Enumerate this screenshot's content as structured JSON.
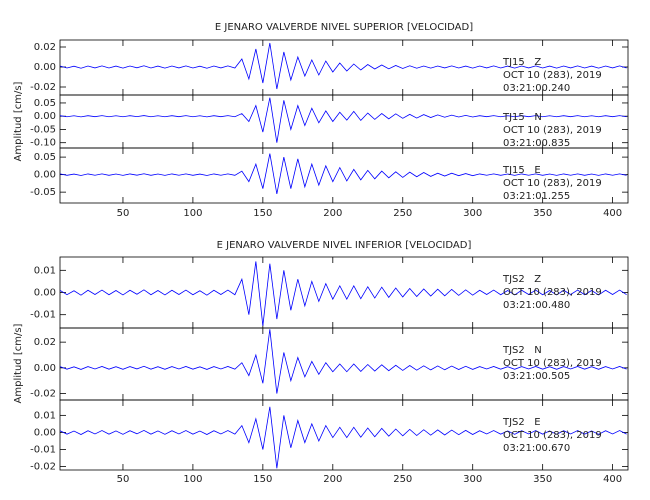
{
  "chart_data": [
    {
      "type": "line",
      "title": "E JENARO VALVERDE NIVEL SUPERIOR [VELOCIDAD]",
      "y_label": "Amplitud [cm/s]",
      "xlim": [
        5,
        411
      ],
      "xticks": [
        50,
        100,
        150,
        200,
        250,
        300,
        350,
        400
      ],
      "x": [
        5,
        10,
        15,
        20,
        25,
        30,
        35,
        40,
        45,
        50,
        55,
        60,
        65,
        70,
        75,
        80,
        85,
        90,
        95,
        100,
        105,
        110,
        115,
        120,
        125,
        130,
        135,
        140,
        145,
        150,
        155,
        160,
        165,
        170,
        175,
        180,
        185,
        190,
        195,
        200,
        205,
        210,
        215,
        220,
        225,
        230,
        235,
        240,
        245,
        250,
        255,
        260,
        265,
        270,
        275,
        280,
        285,
        290,
        295,
        300,
        305,
        310,
        315,
        320,
        325,
        330,
        335,
        340,
        345,
        350,
        355,
        360,
        365,
        370,
        375,
        380,
        385,
        390,
        395,
        400,
        405,
        410
      ],
      "series": [
        {
          "name": "TJ15   Z",
          "date": "OCT 10 (283), 2019",
          "time": "03:21:00.240",
          "color": "#0000ff",
          "ylim": [
            -0.028,
            0.027
          ],
          "yticks": [
            {
              "value": 0.02,
              "label": "0.02"
            },
            {
              "value": 0.0,
              "label": "0.00"
            },
            {
              "value": -0.02,
              "label": "-0.02"
            }
          ],
          "values": [
            0.001,
            -0.001,
            0.0008,
            -0.0012,
            0.001,
            -0.0009,
            0.0011,
            -0.001,
            0.0009,
            -0.0011,
            0.001,
            -0.0008,
            0.0012,
            -0.001,
            0.0009,
            -0.0011,
            0.001,
            -0.0009,
            0.0011,
            -0.001,
            0.0008,
            -0.0012,
            0.001,
            -0.0009,
            0.0011,
            -0.001,
            0.008,
            -0.012,
            0.018,
            -0.016,
            0.024,
            -0.022,
            0.015,
            -0.013,
            0.01,
            -0.009,
            0.007,
            -0.008,
            0.006,
            -0.005,
            0.004,
            -0.004,
            0.003,
            -0.003,
            0.0025,
            -0.002,
            0.002,
            -0.0018,
            0.0015,
            -0.0015,
            0.0012,
            -0.0012,
            0.001,
            -0.0011,
            0.001,
            -0.0009,
            0.0011,
            -0.001,
            0.0009,
            -0.0011,
            0.001,
            -0.0009,
            0.0011,
            -0.001,
            0.0009,
            -0.0011,
            0.001,
            -0.0009,
            0.0011,
            -0.001,
            0.0009,
            -0.0011,
            0.001,
            -0.0009,
            0.0011,
            -0.001,
            0.0009,
            -0.0011,
            0.001,
            -0.0009,
            0.0011,
            -0.001
          ]
        },
        {
          "name": "TJ15   N",
          "date": "OCT 10 (283), 2019",
          "time": "03:21:00.835",
          "color": "#0000ff",
          "ylim": [
            -0.12,
            0.08
          ],
          "yticks": [
            {
              "value": 0.05,
              "label": "0.05"
            },
            {
              "value": 0.0,
              "label": "0.00"
            },
            {
              "value": -0.05,
              "label": "-0.05"
            },
            {
              "value": -0.1,
              "label": "-0.10"
            }
          ],
          "values": [
            0.002,
            -0.002,
            0.0016,
            -0.0024,
            0.002,
            -0.0018,
            0.0022,
            -0.002,
            0.0018,
            -0.0022,
            0.002,
            -0.0016,
            0.0024,
            -0.002,
            0.0018,
            -0.0022,
            0.002,
            -0.0018,
            0.0022,
            -0.002,
            0.0016,
            -0.0024,
            0.002,
            -0.0018,
            0.0022,
            -0.002,
            0.01,
            -0.02,
            0.04,
            -0.06,
            0.07,
            -0.1,
            0.06,
            -0.05,
            0.04,
            -0.035,
            0.03,
            -0.025,
            0.02,
            -0.02,
            0.015,
            -0.015,
            0.018,
            -0.016,
            0.012,
            -0.012,
            0.01,
            -0.01,
            0.009,
            -0.008,
            0.007,
            -0.007,
            0.006,
            -0.005,
            0.005,
            -0.004,
            0.004,
            -0.003,
            0.003,
            -0.003,
            0.002,
            -0.0018,
            0.0022,
            -0.002,
            0.0018,
            -0.0022,
            0.002,
            -0.0018,
            0.0022,
            -0.002,
            0.0018,
            -0.0022,
            0.002,
            -0.0018,
            0.0022,
            -0.002,
            0.0018,
            -0.0022,
            0.002,
            -0.0018,
            0.0022,
            -0.002
          ]
        },
        {
          "name": "TJ15   E",
          "date": "OCT 10 (283), 2019",
          "time": "03:21:01.255",
          "color": "#0000ff",
          "ylim": [
            -0.081,
            0.076
          ],
          "yticks": [
            {
              "value": 0.05,
              "label": "0.05"
            },
            {
              "value": 0.0,
              "label": "0.00"
            },
            {
              "value": -0.05,
              "label": "-0.05"
            }
          ],
          "values": [
            0.002,
            -0.002,
            0.0016,
            -0.0024,
            0.002,
            -0.0018,
            0.0022,
            -0.002,
            0.0018,
            -0.0022,
            0.002,
            -0.0016,
            0.0024,
            -0.002,
            0.0018,
            -0.0022,
            0.002,
            -0.0018,
            0.0022,
            -0.002,
            0.0016,
            -0.0024,
            0.002,
            -0.0018,
            0.0022,
            -0.002,
            0.01,
            -0.02,
            0.03,
            -0.04,
            0.06,
            -0.055,
            0.05,
            -0.04,
            0.045,
            -0.035,
            0.03,
            -0.03,
            0.025,
            -0.02,
            0.02,
            -0.018,
            0.015,
            -0.015,
            0.012,
            -0.012,
            0.01,
            -0.009,
            0.008,
            -0.008,
            0.007,
            -0.006,
            0.006,
            -0.005,
            0.004,
            -0.004,
            0.004,
            -0.003,
            0.003,
            -0.003,
            0.002,
            -0.0018,
            0.0022,
            -0.002,
            0.0018,
            -0.0022,
            0.002,
            -0.0018,
            0.0022,
            -0.002,
            0.0018,
            -0.0022,
            0.002,
            -0.0018,
            0.0022,
            -0.002,
            0.0018,
            -0.0022,
            0.002,
            -0.0018,
            0.0022,
            -0.002
          ]
        }
      ]
    },
    {
      "type": "line",
      "title": "E JENARO VALVERDE NIVEL INFERIOR [VELOCIDAD]",
      "y_label": "Amplitud [cm/s]",
      "xlim": [
        5,
        411
      ],
      "xticks": [
        50,
        100,
        150,
        200,
        250,
        300,
        350,
        400
      ],
      "x": [
        5,
        10,
        15,
        20,
        25,
        30,
        35,
        40,
        45,
        50,
        55,
        60,
        65,
        70,
        75,
        80,
        85,
        90,
        95,
        100,
        105,
        110,
        115,
        120,
        125,
        130,
        135,
        140,
        145,
        150,
        155,
        160,
        165,
        170,
        175,
        180,
        185,
        190,
        195,
        200,
        205,
        210,
        215,
        220,
        225,
        230,
        235,
        240,
        245,
        250,
        255,
        260,
        265,
        270,
        275,
        280,
        285,
        290,
        295,
        300,
        305,
        310,
        315,
        320,
        325,
        330,
        335,
        340,
        345,
        350,
        355,
        360,
        365,
        370,
        375,
        380,
        385,
        390,
        395,
        400,
        405,
        410
      ],
      "series": [
        {
          "name": "TJS2   Z",
          "date": "OCT 10 (283), 2019",
          "time": "03:21:00.480",
          "color": "#0000ff",
          "ylim": [
            -0.016,
            0.016
          ],
          "yticks": [
            {
              "value": 0.01,
              "label": "0.01"
            },
            {
              "value": 0.0,
              "label": "0.00"
            },
            {
              "value": -0.01,
              "label": "-0.01"
            }
          ],
          "values": [
            0.001,
            -0.001,
            0.0008,
            -0.0012,
            0.001,
            -0.0009,
            0.0011,
            -0.001,
            0.0009,
            -0.0011,
            0.001,
            -0.0008,
            0.0012,
            -0.001,
            0.0009,
            -0.0011,
            0.001,
            -0.0009,
            0.0011,
            -0.001,
            0.0008,
            -0.0012,
            0.001,
            -0.0009,
            0.0011,
            -0.001,
            0.006,
            -0.01,
            0.014,
            -0.015,
            0.013,
            -0.012,
            0.01,
            -0.008,
            0.006,
            -0.006,
            0.005,
            -0.004,
            0.004,
            -0.003,
            0.003,
            -0.003,
            0.003,
            -0.0028,
            0.0026,
            -0.0025,
            0.0024,
            -0.0022,
            0.002,
            -0.002,
            0.0018,
            -0.0018,
            0.0016,
            -0.0016,
            0.0015,
            -0.0015,
            0.0014,
            -0.0013,
            0.0012,
            -0.0012,
            0.001,
            -0.0009,
            0.0011,
            -0.001,
            0.0009,
            -0.0011,
            0.001,
            -0.0009,
            0.0011,
            -0.001,
            0.0009,
            -0.0011,
            0.001,
            -0.0009,
            0.0011,
            -0.001,
            0.0009,
            -0.0011,
            0.001,
            -0.0009,
            0.0011,
            -0.001
          ]
        },
        {
          "name": "TJS2   N",
          "date": "OCT 10 (283), 2019",
          "time": "03:21:00.505",
          "color": "#0000ff",
          "ylim": [
            -0.025,
            0.031
          ],
          "yticks": [
            {
              "value": 0.02,
              "label": "0.02"
            },
            {
              "value": 0.0,
              "label": "0.00"
            },
            {
              "value": -0.02,
              "label": "-0.02"
            }
          ],
          "values": [
            0.001,
            -0.001,
            0.0008,
            -0.0012,
            0.001,
            -0.0009,
            0.0011,
            -0.001,
            0.0009,
            -0.0011,
            0.001,
            -0.0008,
            0.0012,
            -0.001,
            0.0009,
            -0.0011,
            0.001,
            -0.0009,
            0.0011,
            -0.001,
            0.0008,
            -0.0012,
            0.001,
            -0.0009,
            0.0011,
            -0.001,
            0.004,
            -0.006,
            0.01,
            -0.012,
            0.03,
            -0.02,
            0.012,
            -0.01,
            0.008,
            -0.007,
            0.005,
            -0.005,
            0.004,
            -0.003,
            0.003,
            -0.003,
            0.003,
            -0.0028,
            0.0026,
            -0.0025,
            0.0024,
            -0.0022,
            0.002,
            -0.002,
            0.0018,
            -0.0018,
            0.0016,
            -0.0016,
            0.0015,
            -0.0015,
            0.0014,
            -0.0013,
            0.0012,
            -0.0012,
            0.001,
            -0.0009,
            0.0011,
            -0.001,
            0.0009,
            -0.0011,
            0.001,
            -0.0009,
            0.0011,
            -0.001,
            0.0009,
            -0.0011,
            0.001,
            -0.0009,
            0.0011,
            -0.001,
            0.0009,
            -0.0011,
            0.001,
            -0.0009,
            0.0011,
            -0.001
          ]
        },
        {
          "name": "TJS2   E",
          "date": "OCT 10 (283), 2019",
          "time": "03:21:00.670",
          "color": "#0000ff",
          "ylim": [
            -0.022,
            0.019
          ],
          "yticks": [
            {
              "value": 0.01,
              "label": "0.01"
            },
            {
              "value": 0.0,
              "label": "0.00"
            },
            {
              "value": -0.01,
              "label": "-0.01"
            },
            {
              "value": -0.02,
              "label": "-0.02"
            }
          ],
          "values": [
            0.001,
            -0.001,
            0.0008,
            -0.0012,
            0.001,
            -0.0009,
            0.0011,
            -0.001,
            0.0009,
            -0.0011,
            0.001,
            -0.0008,
            0.0012,
            -0.001,
            0.0009,
            -0.0011,
            0.001,
            -0.0009,
            0.0011,
            -0.001,
            0.0008,
            -0.0012,
            0.001,
            -0.0009,
            0.0011,
            -0.001,
            0.004,
            -0.006,
            0.008,
            -0.01,
            0.015,
            -0.021,
            0.01,
            -0.009,
            0.007,
            -0.006,
            0.005,
            -0.005,
            0.004,
            -0.003,
            0.003,
            -0.003,
            0.003,
            -0.0028,
            0.0026,
            -0.0025,
            0.0024,
            -0.0022,
            0.002,
            -0.002,
            0.0018,
            -0.0018,
            0.0016,
            -0.0016,
            0.0015,
            -0.0015,
            0.0014,
            -0.0013,
            0.0012,
            -0.0012,
            0.001,
            -0.0009,
            0.0011,
            -0.001,
            0.0009,
            -0.0011,
            0.001,
            -0.0009,
            0.0011,
            -0.001,
            0.0009,
            -0.0011,
            0.001,
            -0.0009,
            0.0011,
            -0.001,
            0.0009,
            -0.0011,
            0.001,
            -0.0009,
            0.0011,
            -0.001
          ]
        }
      ]
    }
  ]
}
